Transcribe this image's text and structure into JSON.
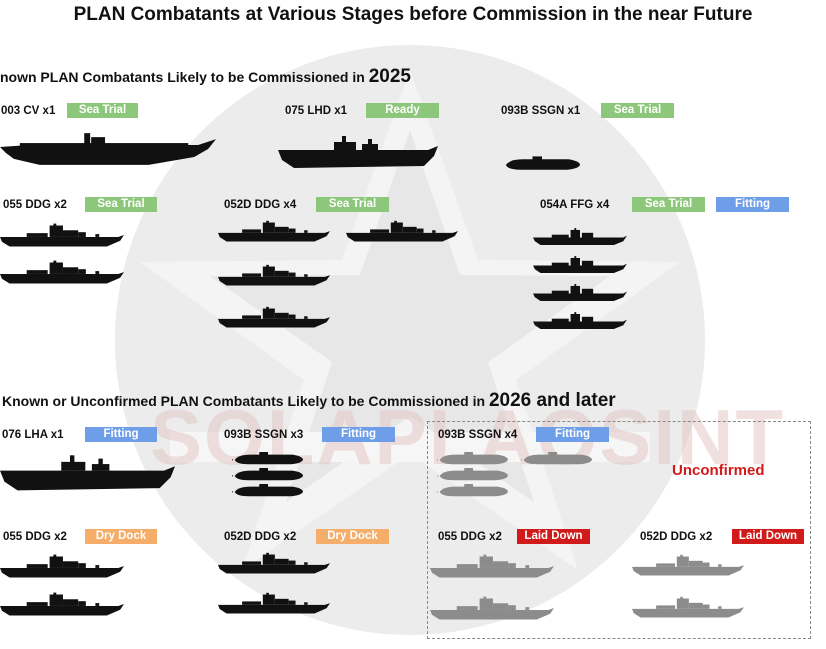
{
  "title": "PLAN Combatants at Various Stages before Commission in the near Future",
  "colors": {
    "sea_trial": "#8dc77b",
    "fitting": "#6f9ee8",
    "dry_dock": "#f5ad6a",
    "laid_down": "#d11a1a",
    "confirmed_ship": "#111111",
    "unconfirmed_ship": "#8c8c8c",
    "watermark": "#ededed"
  },
  "section_2025": {
    "prefix": "nown PLAN Combatants Likely to be Commissioned in",
    "year": "2025"
  },
  "section_2026": {
    "prefix": "Known or Unconfirmed PLAN Combatants Likely to be Commissioned in",
    "year": "2026 and later"
  },
  "groups_2025": [
    {
      "label": "003 CV x1",
      "status": "Sea Trial",
      "icon": "carrier-icon"
    },
    {
      "label": "075 LHD x1",
      "status": "Ready",
      "icon": "amphibious-assault-ship-icon"
    },
    {
      "label": "093B SSGN x1",
      "status": "Sea Trial",
      "icon": "submarine-icon"
    },
    {
      "label": "055 DDG x2",
      "status": "Sea Trial",
      "icon": "destroyer-icon"
    },
    {
      "label": "052D DDG x4",
      "status": "Sea Trial",
      "icon": "destroyer-icon"
    },
    {
      "label": "054A FFG x4",
      "status": "Sea Trial",
      "status2": "Fitting",
      "icon": "frigate-icon"
    }
  ],
  "groups_2026": [
    {
      "label": "076 LHA x1",
      "status": "Fitting",
      "icon": "amphibious-assault-ship-icon"
    },
    {
      "label": "093B SSGN x3",
      "status": "Fitting",
      "icon": "submarine-icon"
    },
    {
      "label": "093B SSGN x4",
      "status": "Fitting",
      "icon": "submarine-icon"
    },
    {
      "label": "055 DDG x2",
      "status": "Dry Dock",
      "icon": "destroyer-icon"
    },
    {
      "label": "052D DDG x2",
      "status": "Dry Dock",
      "icon": "destroyer-icon"
    },
    {
      "label": "055 DDG x2",
      "status": "Laid Down",
      "icon": "destroyer-icon"
    },
    {
      "label": "052D DDG x2",
      "status": "Laid Down",
      "icon": "destroyer-icon"
    }
  ],
  "unconfirmed_label": "Unconfirmed",
  "watermark": {
    "text": "SOLAPLAOSINT",
    "icon": "star-emblem-icon"
  }
}
